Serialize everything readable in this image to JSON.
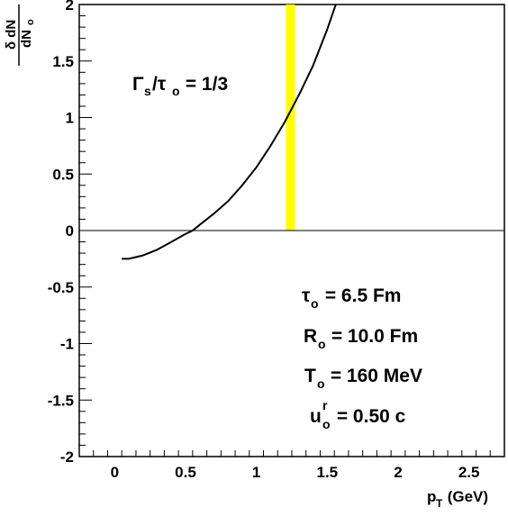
{
  "chart_data": {
    "type": "line",
    "title": "",
    "xlabel": {
      "main": "p",
      "sub": "T",
      "rest": " (GeV)"
    },
    "ylabel": {
      "numerator": "δ dN",
      "denominator": "dN",
      "denominator_sub": "o"
    },
    "xlim": [
      -0.25,
      2.75
    ],
    "ylim": [
      -2,
      2
    ],
    "xticks": [
      0,
      0.5,
      1,
      1.5,
      2,
      2.5
    ],
    "xtick_labels": [
      "0",
      "0.5",
      "1",
      "1.5",
      "2",
      "2.5"
    ],
    "yticks": [
      -2,
      -1.5,
      -1,
      -0.5,
      0,
      0.5,
      1,
      1.5,
      2
    ],
    "ytick_labels": [
      "-2",
      "-1.5",
      "-1",
      "-0.5",
      "0",
      "0.5",
      "1",
      "1.5",
      "2"
    ],
    "zero_line": true,
    "series": [
      {
        "color": "#000000",
        "x": [
          0.05,
          0.1,
          0.2,
          0.3,
          0.4,
          0.5,
          0.55,
          0.6,
          0.7,
          0.8,
          0.9,
          1.0,
          1.1,
          1.2,
          1.3,
          1.4,
          1.5,
          1.56
        ],
        "y": [
          -0.25,
          -0.25,
          -0.22,
          -0.17,
          -0.1,
          -0.03,
          0.0,
          0.05,
          0.15,
          0.26,
          0.4,
          0.56,
          0.75,
          0.96,
          1.2,
          1.46,
          1.78,
          2.0
        ]
      }
    ],
    "band": {
      "x": 1.24,
      "y": [
        0,
        2
      ],
      "color": "#ffff00"
    },
    "annotations": {
      "ratio": {
        "a": "Γ",
        "a_sub": "s",
        "mid": "/τ",
        "b_sub": "o",
        "rest": " = 1/3"
      },
      "params": [
        {
          "sym": "τ",
          "sub": "o",
          "sup": "",
          "rest": " = 6.5 Fm"
        },
        {
          "sym": "R",
          "sub": "o",
          "sup": "",
          "rest": " = 10.0 Fm"
        },
        {
          "sym": "T",
          "sub": "o",
          "sup": "",
          "rest": " = 160 MeV"
        },
        {
          "sym": "u",
          "sub": "o",
          "sup": "r",
          "rest": " = 0.50 c"
        }
      ]
    }
  }
}
